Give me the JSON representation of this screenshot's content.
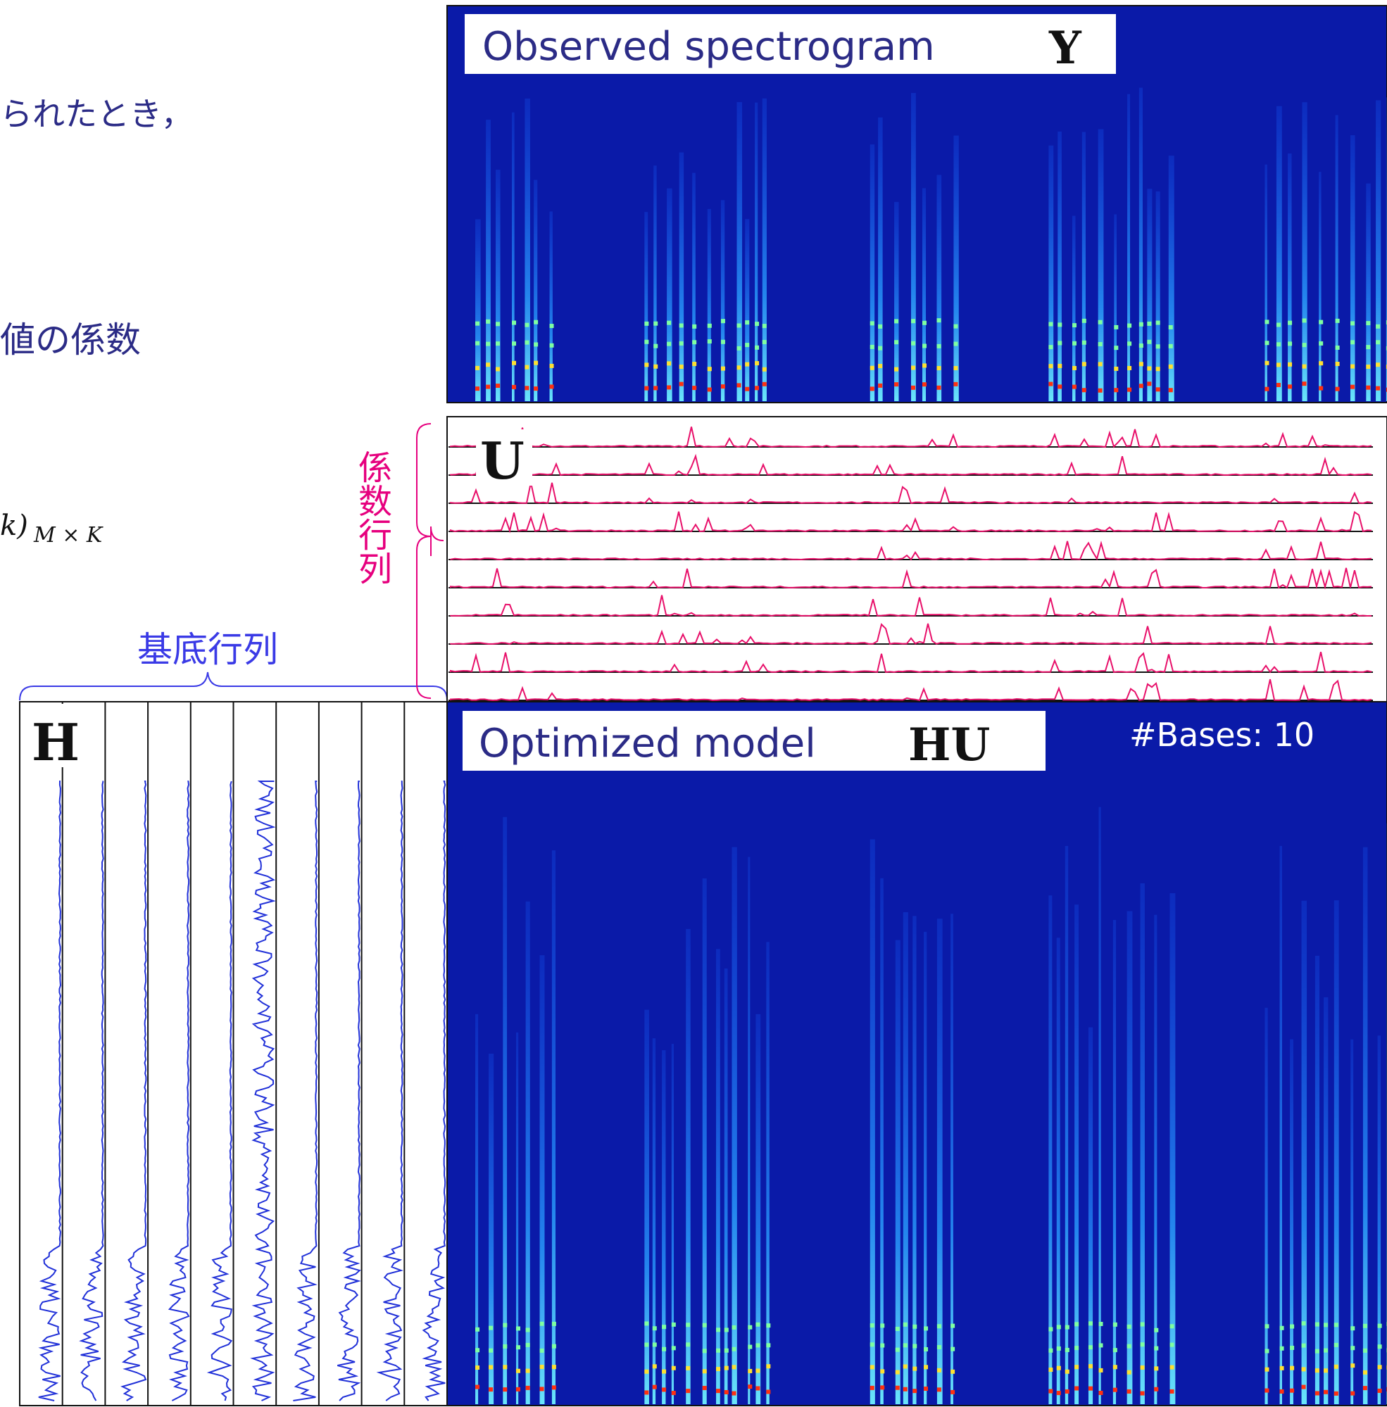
{
  "slide": {
    "text_lines": [
      "られたとき，",
      "値の係数"
    ],
    "formula": {
      "main": "k)",
      "subscript": "M × K"
    },
    "coefficient_label": "係数行列",
    "basis_label": "基底行列",
    "panels": {
      "observed": {
        "title": "Observed spectrogram",
        "symbol": "Y"
      },
      "coefficients": {
        "symbol": "U"
      },
      "basis": {
        "symbol": "H"
      },
      "model": {
        "title": "Optimized model",
        "symbol": "HU",
        "annotation": "#Bases: 10"
      }
    }
  }
}
